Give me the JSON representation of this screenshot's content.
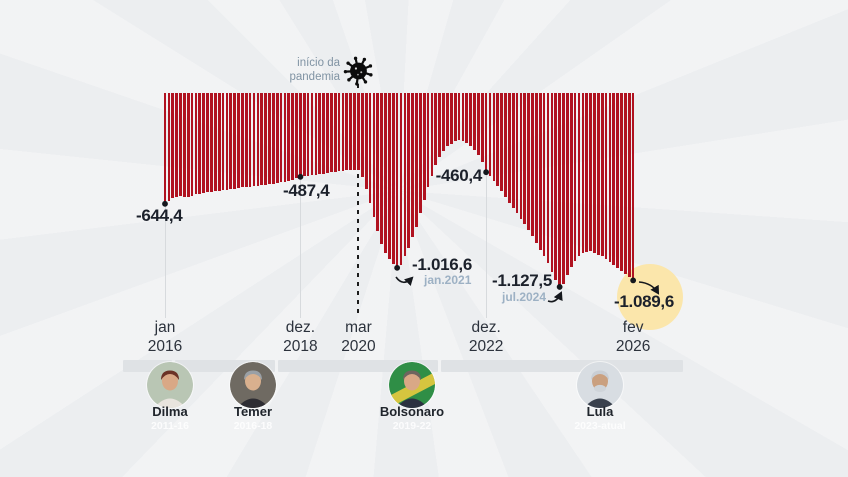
{
  "chart_data": {
    "type": "bar",
    "bar_color": "#b01220",
    "bar_direction": "downward-from-zero-baseline",
    "x_range": "jan 2016 - fev 2026 (monthly)",
    "ylim": [
      -1200,
      0
    ],
    "grid": "vertical-ticks-only",
    "x_ticks": [
      {
        "month": "jan",
        "year": "2016",
        "index": 0
      },
      {
        "month": "dez.",
        "year": "2018",
        "index": 35
      },
      {
        "month": "mar",
        "year": "2020",
        "index": 50
      },
      {
        "month": "dez.",
        "year": "2022",
        "index": 83
      },
      {
        "month": "fev",
        "year": "2026",
        "index": 121
      }
    ],
    "values": [
      -644.4,
      -627,
      -610,
      -605,
      -600,
      -603,
      -607,
      -598,
      -590,
      -585,
      -580,
      -577,
      -575,
      -571,
      -568,
      -565,
      -562,
      -560,
      -558,
      -553,
      -548,
      -546,
      -545,
      -542,
      -540,
      -536,
      -532,
      -530,
      -528,
      -524,
      -520,
      -515,
      -510,
      -503,
      -495,
      -487.4,
      -484,
      -481,
      -478,
      -475,
      -472,
      -469,
      -466,
      -462,
      -458,
      -455,
      -452,
      -450,
      -448,
      -446,
      -445,
      -490,
      -560,
      -640,
      -720,
      -800,
      -880,
      -930,
      -965,
      -995,
      -1016.6,
      -1000,
      -950,
      -900,
      -840,
      -780,
      -700,
      -620,
      -545,
      -480,
      -420,
      -370,
      -335,
      -310,
      -295,
      -280,
      -272,
      -278,
      -290,
      -308,
      -330,
      -360,
      -400,
      -460.4,
      -480,
      -510,
      -540,
      -570,
      -605,
      -640,
      -670,
      -700,
      -730,
      -763,
      -797,
      -830,
      -870,
      -910,
      -950,
      -990,
      -1040,
      -1085,
      -1127.5,
      -1110,
      -1060,
      -1010,
      -975,
      -950,
      -930,
      -925,
      -920,
      -930,
      -940,
      -950,
      -965,
      -985,
      -1000,
      -1020,
      -1035,
      -1050,
      -1070,
      -1089.6
    ],
    "annotations": [
      {
        "id": "a0",
        "index": 0,
        "value_label": "-644,4"
      },
      {
        "id": "a1",
        "index": 35,
        "value_label": "-487,4"
      },
      {
        "id": "a2",
        "index": 83,
        "value_label": "-460,4"
      },
      {
        "id": "a3",
        "index": 60,
        "value_label": "-1.016,6",
        "sub_label": "jan.2021"
      },
      {
        "id": "a4",
        "index": 102,
        "value_label": "-1.127,5",
        "sub_label": "jul.2024"
      },
      {
        "id": "a5",
        "index": 121,
        "value_label": "-1.089,6",
        "highlight": true
      }
    ],
    "pandemic_marker": {
      "index": 50,
      "label_line1": "início da",
      "label_line2": "pandemia"
    }
  },
  "timeline": {
    "presidents": [
      {
        "name": "Dilma",
        "term": "2011-16"
      },
      {
        "name": "Temer",
        "term": "2016-18"
      },
      {
        "name": "Bolsonaro",
        "term": "2019-22"
      },
      {
        "name": "Lula",
        "term": "2023-atual"
      }
    ]
  },
  "colors": {
    "bar": "#b01220",
    "highlight_circle": "#fbe6ab",
    "sub_label": "#9db1c4",
    "pandemic_label": "#8093a3",
    "value_label": "#1c212b",
    "timeline_segment": "#dfe2e5"
  }
}
